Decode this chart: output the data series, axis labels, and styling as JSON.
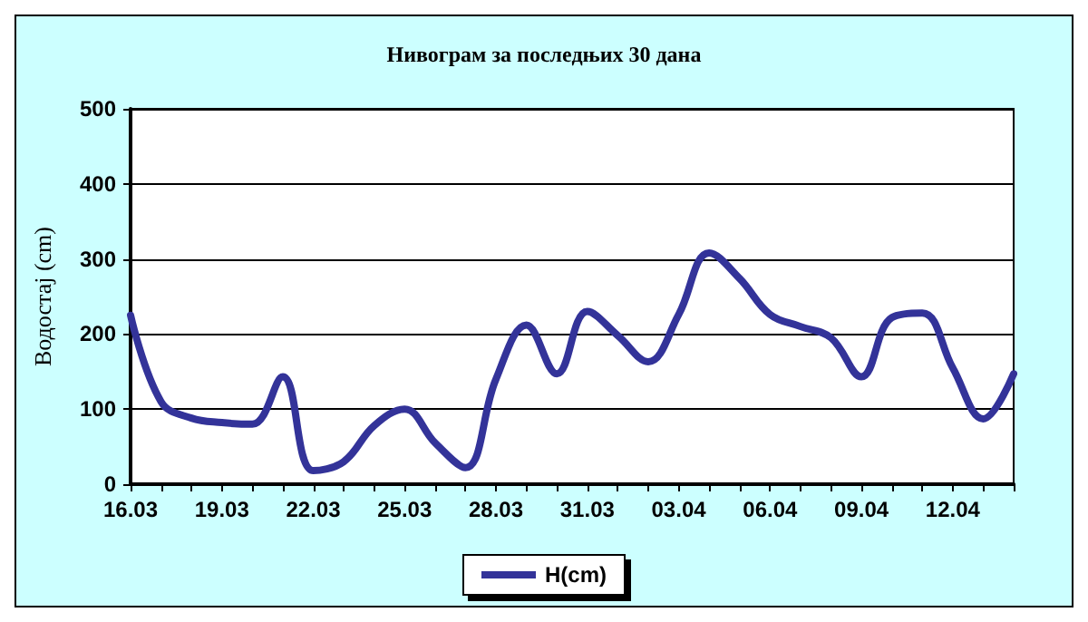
{
  "chart_data": {
    "type": "line",
    "title": "Нивограм за последњих 30 дана",
    "ylabel": "Водостај (cm)",
    "categories": [
      "16.03",
      null,
      null,
      "19.03",
      null,
      null,
      "22.03",
      null,
      null,
      "25.03",
      null,
      null,
      "28.03",
      null,
      null,
      "31.03",
      null,
      null,
      "03.04",
      null,
      null,
      "06.04",
      null,
      null,
      "09.04",
      null,
      null,
      "12.04",
      null,
      null
    ],
    "series": [
      {
        "name": "H(cm)",
        "color": "#333399",
        "values": [
          225,
          110,
          88,
          82,
          80,
          143,
          18,
          30,
          78,
          100,
          55,
          22,
          140,
          212,
          147,
          230,
          198,
          163,
          226,
          308,
          274,
          226,
          210,
          195,
          143,
          222,
          228,
          155,
          87,
          147
        ]
      }
    ],
    "ylim": [
      0,
      500
    ],
    "yticks": [
      0,
      100,
      200,
      300,
      400,
      500
    ],
    "grid": "y",
    "legend": "bottom",
    "marker": "none",
    "line_style": "solid"
  }
}
